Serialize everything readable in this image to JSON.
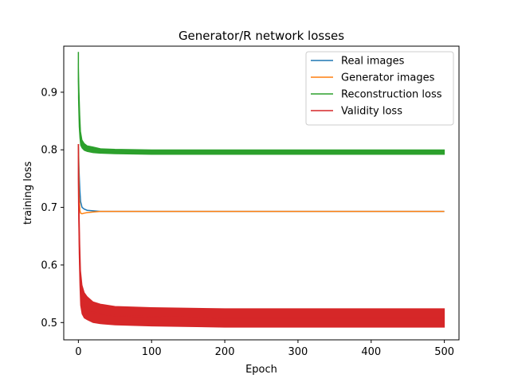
{
  "chart_data": {
    "type": "line",
    "title": "Generator/R network losses",
    "xlabel": "Epoch",
    "ylabel": "training loss",
    "xlim": [
      -20,
      520
    ],
    "ylim": [
      0.47,
      0.98
    ],
    "x_ticks": [
      0,
      100,
      200,
      300,
      400,
      500
    ],
    "y_ticks": [
      0.5,
      0.6,
      0.7,
      0.8,
      0.9
    ],
    "x_tick_labels": [
      "0",
      "100",
      "200",
      "300",
      "400",
      "500"
    ],
    "y_tick_labels": [
      "0.5",
      "0.6",
      "0.7",
      "0.8",
      "0.9"
    ],
    "grid": false,
    "legend_position": "top-right",
    "series": [
      {
        "name": "Real images",
        "color": "#1f77b4",
        "x": [
          0,
          1,
          2,
          3,
          5,
          8,
          12,
          20,
          30,
          50,
          100,
          200,
          300,
          400,
          500
        ],
        "y": [
          0.81,
          0.76,
          0.73,
          0.71,
          0.7,
          0.697,
          0.695,
          0.694,
          0.693,
          0.693,
          0.693,
          0.693,
          0.693,
          0.693,
          0.693
        ],
        "band_halfwidth": [
          0,
          0,
          0,
          0,
          0,
          0,
          0,
          0,
          0,
          0,
          0,
          0,
          0,
          0,
          0
        ]
      },
      {
        "name": "Generator images",
        "color": "#ff7f0e",
        "x": [
          0,
          1,
          2,
          3,
          5,
          8,
          12,
          20,
          30,
          50,
          100,
          200,
          300,
          400,
          500
        ],
        "y": [
          0.81,
          0.72,
          0.695,
          0.69,
          0.689,
          0.69,
          0.691,
          0.692,
          0.693,
          0.693,
          0.693,
          0.693,
          0.693,
          0.693,
          0.693
        ],
        "band_halfwidth": [
          0,
          0,
          0,
          0,
          0,
          0,
          0,
          0,
          0,
          0,
          0,
          0,
          0,
          0,
          0
        ]
      },
      {
        "name": "Reconstruction loss",
        "color": "#2ca02c",
        "x": [
          0,
          1,
          2,
          3,
          5,
          8,
          12,
          20,
          30,
          50,
          100,
          200,
          300,
          400,
          500
        ],
        "y": [
          0.92,
          0.87,
          0.84,
          0.82,
          0.81,
          0.805,
          0.802,
          0.8,
          0.798,
          0.797,
          0.796,
          0.796,
          0.796,
          0.796,
          0.796
        ],
        "peak": 0.97,
        "band_halfwidth": [
          0.03,
          0.03,
          0.02,
          0.012,
          0.007,
          0.006,
          0.005,
          0.005,
          0.004,
          0.004,
          0.004,
          0.004,
          0.004,
          0.004,
          0.004
        ]
      },
      {
        "name": "Validity loss",
        "color": "#d62728",
        "x": [
          0,
          1,
          2,
          3,
          5,
          8,
          12,
          20,
          30,
          50,
          100,
          200,
          300,
          400,
          500
        ],
        "y": [
          0.75,
          0.66,
          0.6,
          0.56,
          0.54,
          0.53,
          0.525,
          0.518,
          0.515,
          0.512,
          0.51,
          0.508,
          0.508,
          0.508,
          0.508
        ],
        "peak": 0.81,
        "band_halfwidth": [
          0.04,
          0.04,
          0.035,
          0.03,
          0.025,
          0.022,
          0.02,
          0.018,
          0.017,
          0.016,
          0.016,
          0.016,
          0.016,
          0.016,
          0.016
        ]
      }
    ]
  }
}
